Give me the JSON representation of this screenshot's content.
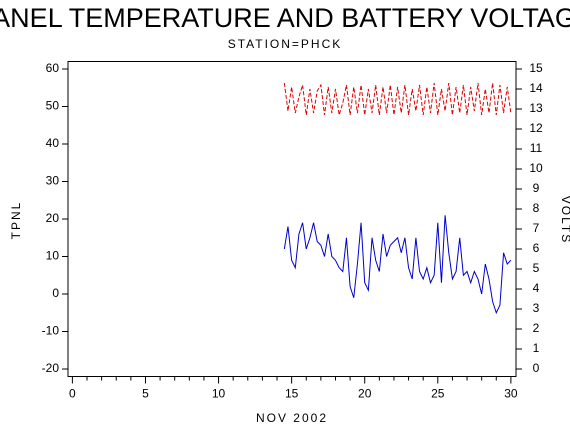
{
  "chart_data": {
    "type": "line",
    "title": "PANEL TEMPERATURE AND BATTERY VOLTAGE",
    "subtitle": "STATION=PHCK",
    "x_label": "NOV 2002",
    "y_label": "TPNL",
    "y2_label": "VOLTS",
    "x": [
      14.5,
      14.75,
      15,
      15.25,
      15.5,
      15.75,
      16,
      16.25,
      16.5,
      16.75,
      17,
      17.25,
      17.5,
      17.75,
      18,
      18.25,
      18.5,
      18.75,
      19,
      19.25,
      19.5,
      19.75,
      20,
      20.25,
      20.5,
      20.75,
      21,
      21.25,
      21.5,
      21.75,
      22,
      22.25,
      22.5,
      22.75,
      23,
      23.25,
      23.5,
      23.75,
      24,
      24.25,
      24.5,
      24.75,
      25,
      25.25,
      25.5,
      25.75,
      26,
      26.25,
      26.5,
      26.75,
      27,
      27.25,
      27.5,
      27.75,
      28,
      28.25,
      28.5,
      28.75,
      29,
      29.25,
      29.5,
      29.75,
      30
    ],
    "series": [
      {
        "name": "TPNL",
        "color": "#0000cc",
        "axis": "y",
        "values": [
          12,
          18,
          9,
          7,
          16,
          19,
          12,
          15,
          19,
          14,
          13,
          10,
          16,
          10,
          9,
          7,
          6,
          15,
          2,
          -1,
          8,
          19,
          3,
          1,
          15,
          9,
          6,
          16,
          10,
          13,
          14,
          15,
          11,
          15,
          7,
          4,
          15,
          6,
          4,
          7,
          3,
          5,
          19,
          3,
          21,
          11,
          4,
          6,
          15,
          5,
          6,
          3,
          6,
          4,
          0,
          8,
          4,
          -2,
          -5,
          -3,
          11,
          8,
          9
        ]
      },
      {
        "name": "VOLTS",
        "color": "#dd0000",
        "axis": "y2",
        "values": [
          14.3,
          12.9,
          14.1,
          12.8,
          13.6,
          14.2,
          12.7,
          14.0,
          12.8,
          13.9,
          14.2,
          12.7,
          14.1,
          12.8,
          14.0,
          12.7,
          13.3,
          14.2,
          12.7,
          14.1,
          12.8,
          14.2,
          12.7,
          14.0,
          12.8,
          14.2,
          12.7,
          14.1,
          12.8,
          14.2,
          12.7,
          14.1,
          12.8,
          14.2,
          12.7,
          14.0,
          12.9,
          14.2,
          12.7,
          14.1,
          12.8,
          14.3,
          12.7,
          14.0,
          12.9,
          14.3,
          12.7,
          14.1,
          12.8,
          14.2,
          12.7,
          14.1,
          12.9,
          14.3,
          12.7,
          14.0,
          12.8,
          14.3,
          12.7,
          14.2,
          12.8,
          14.1,
          12.8
        ]
      }
    ],
    "xlim": [
      -0.3,
      30.35
    ],
    "xticks": [
      0,
      5,
      10,
      15,
      20,
      25,
      30
    ],
    "x_minor_ticks": [
      1,
      2,
      3,
      4,
      6,
      7,
      8,
      9,
      11,
      12,
      13,
      14,
      16,
      17,
      18,
      19,
      21,
      22,
      23,
      24,
      26,
      27,
      28,
      29
    ],
    "ylim": [
      -22,
      62
    ],
    "yticks": [
      -20,
      -10,
      0,
      10,
      20,
      30,
      40,
      50,
      60
    ],
    "y2lim": [
      -0.375,
      15.375
    ],
    "y2ticks": [
      0,
      1,
      2,
      3,
      4,
      5,
      6,
      7,
      8,
      9,
      10,
      11,
      12,
      13,
      14,
      15
    ],
    "grid": false
  }
}
